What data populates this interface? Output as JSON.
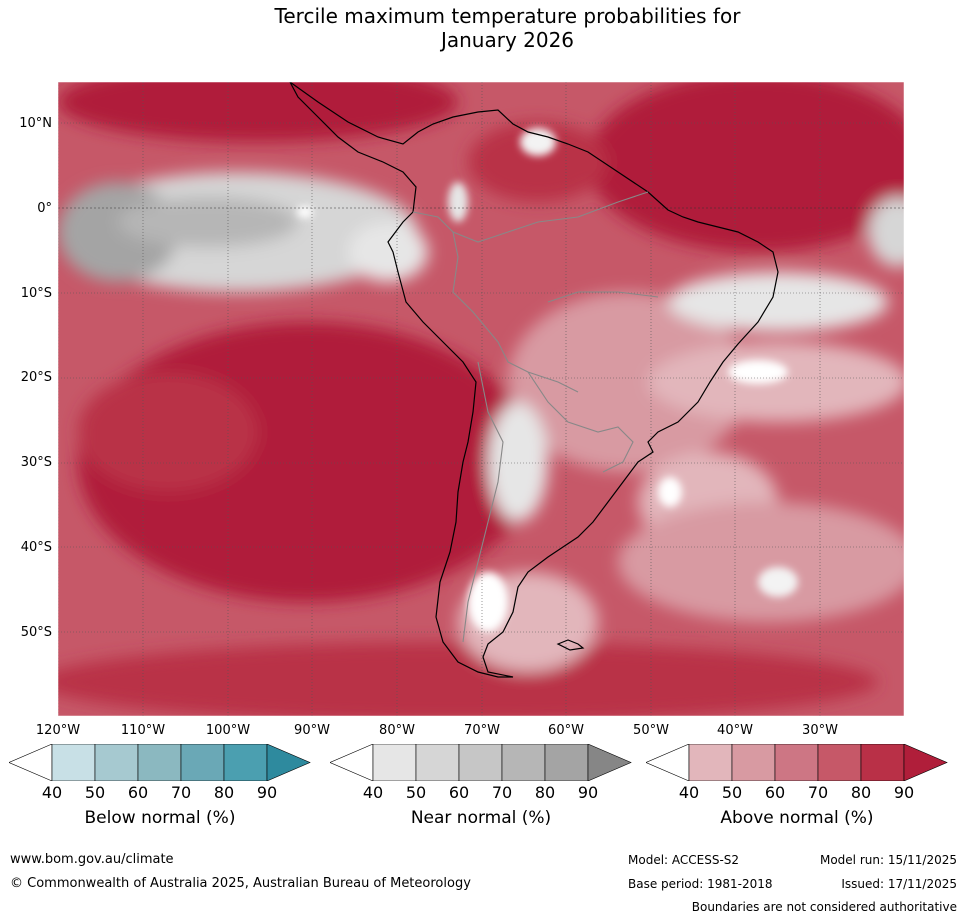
{
  "title_line1": "Tercile maximum temperature probabilities for",
  "title_line2": "January 2026",
  "lat_labels": [
    "10°N",
    "0°",
    "10°S",
    "20°S",
    "30°S",
    "40°S",
    "50°S"
  ],
  "lon_labels": [
    "120°W",
    "110°W",
    "100°W",
    "90°W",
    "80°W",
    "70°W",
    "60°W",
    "50°W",
    "40°W",
    "30°W"
  ],
  "legends": {
    "below": {
      "label": "Below normal (%)",
      "ticks": [
        "40",
        "50",
        "60",
        "70",
        "80",
        "90"
      ],
      "colors": [
        "#ffffff",
        "#c8e0e6",
        "#a6c9d0",
        "#8bb8c0",
        "#6aa8b6",
        "#4b9fb0",
        "#2e8a9e"
      ]
    },
    "near": {
      "label": "Near normal (%)",
      "ticks": [
        "40",
        "50",
        "60",
        "70",
        "80",
        "90"
      ],
      "colors": [
        "#ffffff",
        "#e6e6e6",
        "#d6d6d6",
        "#c6c6c6",
        "#b6b6b6",
        "#a4a4a4",
        "#868686"
      ]
    },
    "above": {
      "label": "Above normal (%)",
      "ticks": [
        "40",
        "50",
        "60",
        "70",
        "80",
        "90"
      ],
      "colors": [
        "#ffffff",
        "#e2b6bb",
        "#d89aa2",
        "#cd7684",
        "#c65868",
        "#b93047",
        "#b01e3a"
      ]
    }
  },
  "footer": {
    "website": "www.bom.gov.au/climate",
    "copyright": "© Commonwealth of Australia 2025, Australian Bureau of Meteorology",
    "model": "Model: ACCESS-S2",
    "model_run": "Model run: 15/11/2025",
    "base_period": "Base period: 1981-2018",
    "issued": "Issued: 17/11/2025",
    "disclaimer": "Boundaries are not considered authoritative"
  }
}
